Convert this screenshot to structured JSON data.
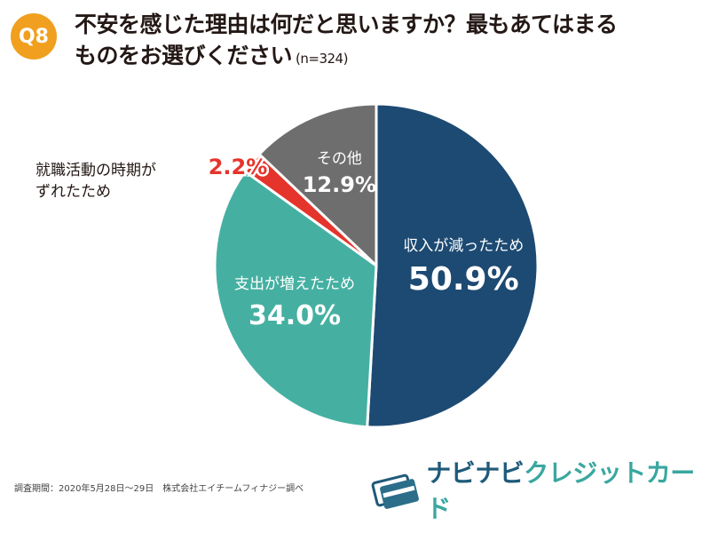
{
  "header": {
    "badge": "Q8",
    "title_line1": "不安を感じた理由は何だと思いますか？最もあてはまる",
    "title_line2": "ものをお選びください",
    "sample": "(n=324)"
  },
  "chart_data": {
    "type": "pie",
    "start": "12 o'clock",
    "direction": "clockwise",
    "slices": [
      {
        "label": "収入が減ったため",
        "value": 50.9,
        "display": "50.9%",
        "color": "#1d4a72"
      },
      {
        "label": "支出が増えたため",
        "value": 34.0,
        "display": "34.0%",
        "color": "#45b0a2"
      },
      {
        "label": "就職活動の時期がずれたため",
        "value": 2.2,
        "display": "2.2%",
        "color": "#e5342c"
      },
      {
        "label": "その他",
        "value": 12.9,
        "display": "12.9%",
        "color": "#6f6e6e"
      }
    ],
    "outside_label_line1": "就職活動の時期が",
    "outside_label_line2": "ずれたため"
  },
  "footer": {
    "source": "調査期間：2020年5月28日〜29日　株式会社エイチームフィナジー調べ",
    "logo_text_a": "ナビナビ",
    "logo_text_b": "クレジットカード",
    "logo_icon": "credit-card-icon"
  }
}
